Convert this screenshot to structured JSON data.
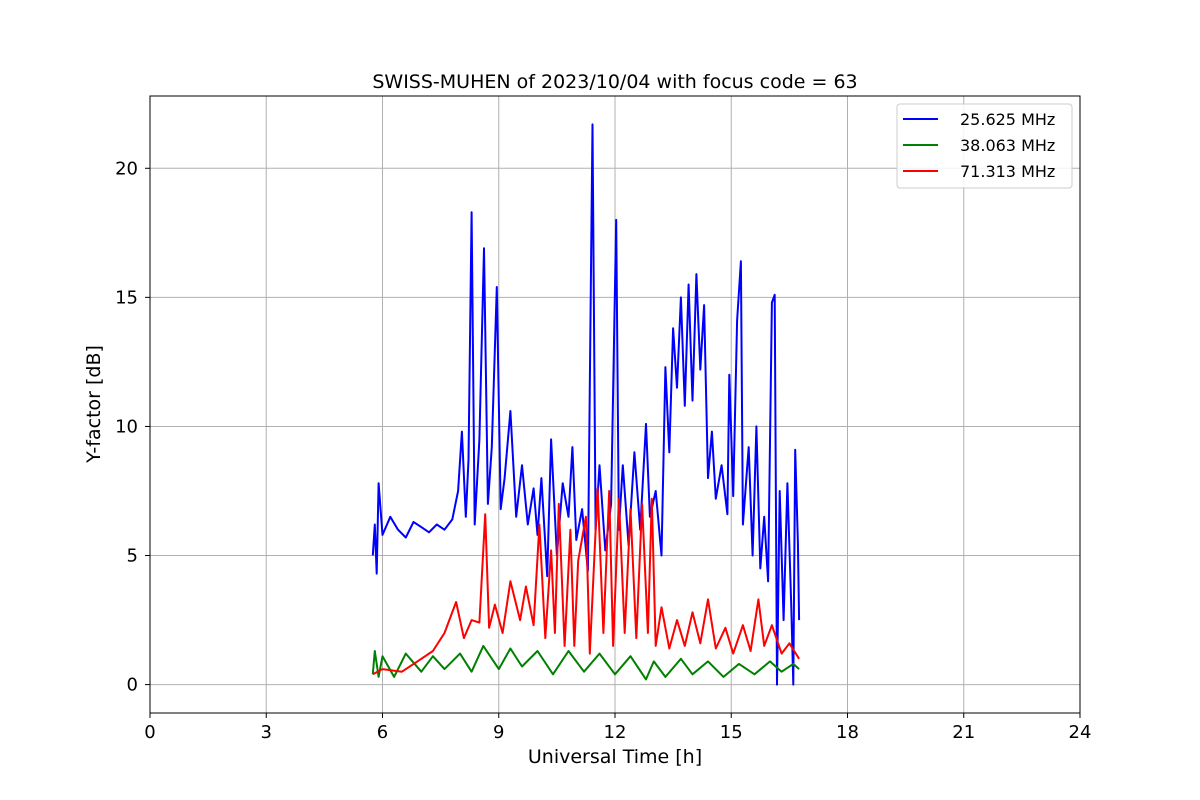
{
  "chart_data": {
    "type": "line",
    "title": "SWISS-MUHEN of 2023/10/04 with focus code = 63",
    "xlabel": "Universal Time [h]",
    "ylabel": "Y-factor [dB]",
    "xlim": [
      0,
      24
    ],
    "ylim": [
      -1.1,
      22.8
    ],
    "xticks": [
      0,
      3,
      6,
      9,
      12,
      15,
      18,
      21,
      24
    ],
    "xtick_labels": [
      "0",
      "3",
      "6",
      "9",
      "12",
      "15",
      "18",
      "21",
      "24"
    ],
    "yticks": [
      0,
      5,
      10,
      15,
      20
    ],
    "ytick_labels": [
      "0",
      "5",
      "10",
      "15",
      "20"
    ],
    "grid": true,
    "legend_position": "top-right",
    "series": [
      {
        "name": "25.625 MHz",
        "color": "#0000ff",
        "points": [
          [
            5.75,
            5.0
          ],
          [
            5.8,
            6.2
          ],
          [
            5.85,
            4.3
          ],
          [
            5.9,
            7.8
          ],
          [
            6.0,
            5.8
          ],
          [
            6.2,
            6.5
          ],
          [
            6.4,
            6.0
          ],
          [
            6.6,
            5.7
          ],
          [
            6.8,
            6.3
          ],
          [
            7.0,
            6.1
          ],
          [
            7.2,
            5.9
          ],
          [
            7.4,
            6.2
          ],
          [
            7.6,
            6.0
          ],
          [
            7.8,
            6.4
          ],
          [
            7.95,
            7.5
          ],
          [
            8.05,
            9.8
          ],
          [
            8.15,
            6.5
          ],
          [
            8.22,
            8.7
          ],
          [
            8.3,
            18.3
          ],
          [
            8.38,
            6.2
          ],
          [
            8.5,
            9.5
          ],
          [
            8.62,
            16.9
          ],
          [
            8.72,
            7.0
          ],
          [
            8.82,
            9.2
          ],
          [
            8.95,
            15.4
          ],
          [
            9.05,
            6.8
          ],
          [
            9.15,
            8.0
          ],
          [
            9.3,
            10.6
          ],
          [
            9.45,
            6.5
          ],
          [
            9.6,
            8.5
          ],
          [
            9.75,
            6.2
          ],
          [
            9.9,
            7.6
          ],
          [
            10.0,
            5.8
          ],
          [
            10.1,
            8.0
          ],
          [
            10.25,
            4.2
          ],
          [
            10.35,
            9.5
          ],
          [
            10.5,
            5.0
          ],
          [
            10.65,
            7.8
          ],
          [
            10.8,
            6.5
          ],
          [
            10.9,
            9.2
          ],
          [
            11.0,
            5.6
          ],
          [
            11.15,
            6.8
          ],
          [
            11.3,
            4.4
          ],
          [
            11.42,
            21.7
          ],
          [
            11.5,
            6.0
          ],
          [
            11.6,
            8.5
          ],
          [
            11.75,
            5.2
          ],
          [
            11.9,
            7.0
          ],
          [
            12.03,
            18.0
          ],
          [
            12.1,
            6.0
          ],
          [
            12.2,
            8.5
          ],
          [
            12.35,
            5.4
          ],
          [
            12.5,
            9.0
          ],
          [
            12.65,
            6.0
          ],
          [
            12.8,
            10.1
          ],
          [
            12.9,
            6.5
          ],
          [
            13.05,
            7.5
          ],
          [
            13.2,
            5.0
          ],
          [
            13.3,
            12.3
          ],
          [
            13.4,
            9.0
          ],
          [
            13.5,
            13.8
          ],
          [
            13.6,
            11.5
          ],
          [
            13.7,
            15.0
          ],
          [
            13.8,
            10.8
          ],
          [
            13.9,
            15.5
          ],
          [
            14.0,
            11.0
          ],
          [
            14.1,
            15.9
          ],
          [
            14.2,
            12.2
          ],
          [
            14.3,
            14.7
          ],
          [
            14.4,
            8.0
          ],
          [
            14.5,
            9.8
          ],
          [
            14.6,
            7.2
          ],
          [
            14.75,
            8.5
          ],
          [
            14.9,
            6.6
          ],
          [
            14.95,
            12.0
          ],
          [
            15.05,
            7.3
          ],
          [
            15.15,
            14.1
          ],
          [
            15.25,
            16.4
          ],
          [
            15.3,
            6.2
          ],
          [
            15.45,
            9.2
          ],
          [
            15.55,
            5.0
          ],
          [
            15.65,
            10.0
          ],
          [
            15.75,
            4.5
          ],
          [
            15.85,
            6.5
          ],
          [
            15.95,
            4.0
          ],
          [
            16.05,
            14.8
          ],
          [
            16.12,
            15.1
          ],
          [
            16.18,
            0.0
          ],
          [
            16.25,
            7.5
          ],
          [
            16.35,
            2.5
          ],
          [
            16.45,
            7.8
          ],
          [
            16.55,
            3.0
          ],
          [
            16.6,
            0.0
          ],
          [
            16.65,
            9.1
          ],
          [
            16.72,
            5.5
          ],
          [
            16.75,
            2.5
          ]
        ]
      },
      {
        "name": "38.063 MHz",
        "color": "#008000",
        "points": [
          [
            5.75,
            0.4
          ],
          [
            5.8,
            1.3
          ],
          [
            5.9,
            0.3
          ],
          [
            6.0,
            1.1
          ],
          [
            6.3,
            0.3
          ],
          [
            6.6,
            1.2
          ],
          [
            7.0,
            0.5
          ],
          [
            7.3,
            1.1
          ],
          [
            7.6,
            0.6
          ],
          [
            8.0,
            1.2
          ],
          [
            8.3,
            0.5
          ],
          [
            8.6,
            1.5
          ],
          [
            9.0,
            0.6
          ],
          [
            9.3,
            1.4
          ],
          [
            9.6,
            0.7
          ],
          [
            10.0,
            1.3
          ],
          [
            10.4,
            0.4
          ],
          [
            10.8,
            1.3
          ],
          [
            11.2,
            0.5
          ],
          [
            11.6,
            1.2
          ],
          [
            12.0,
            0.4
          ],
          [
            12.4,
            1.1
          ],
          [
            12.8,
            0.2
          ],
          [
            13.0,
            0.9
          ],
          [
            13.3,
            0.3
          ],
          [
            13.7,
            1.0
          ],
          [
            14.0,
            0.4
          ],
          [
            14.4,
            0.9
          ],
          [
            14.8,
            0.3
          ],
          [
            15.2,
            0.8
          ],
          [
            15.6,
            0.4
          ],
          [
            16.0,
            0.9
          ],
          [
            16.3,
            0.5
          ],
          [
            16.6,
            0.8
          ],
          [
            16.75,
            0.6
          ]
        ]
      },
      {
        "name": "71.313 MHz",
        "color": "#ff0000",
        "points": [
          [
            5.75,
            0.4
          ],
          [
            6.0,
            0.6
          ],
          [
            6.5,
            0.5
          ],
          [
            6.9,
            0.9
          ],
          [
            7.3,
            1.3
          ],
          [
            7.6,
            2.0
          ],
          [
            7.9,
            3.2
          ],
          [
            8.1,
            1.8
          ],
          [
            8.3,
            2.5
          ],
          [
            8.5,
            2.4
          ],
          [
            8.65,
            6.6
          ],
          [
            8.75,
            2.2
          ],
          [
            8.9,
            3.1
          ],
          [
            9.1,
            2.0
          ],
          [
            9.3,
            4.0
          ],
          [
            9.55,
            2.5
          ],
          [
            9.7,
            3.8
          ],
          [
            9.9,
            2.3
          ],
          [
            10.05,
            6.2
          ],
          [
            10.2,
            1.8
          ],
          [
            10.35,
            5.2
          ],
          [
            10.45,
            2.0
          ],
          [
            10.55,
            7.0
          ],
          [
            10.7,
            1.5
          ],
          [
            10.85,
            6.0
          ],
          [
            10.95,
            1.5
          ],
          [
            11.05,
            4.8
          ],
          [
            11.25,
            6.5
          ],
          [
            11.35,
            1.2
          ],
          [
            11.55,
            7.6
          ],
          [
            11.7,
            2.0
          ],
          [
            11.85,
            7.5
          ],
          [
            11.95,
            1.5
          ],
          [
            12.1,
            7.2
          ],
          [
            12.25,
            2.0
          ],
          [
            12.4,
            6.8
          ],
          [
            12.55,
            1.8
          ],
          [
            12.7,
            7.0
          ],
          [
            12.85,
            2.0
          ],
          [
            12.95,
            7.2
          ],
          [
            13.05,
            1.5
          ],
          [
            13.2,
            3.0
          ],
          [
            13.4,
            1.4
          ],
          [
            13.6,
            2.5
          ],
          [
            13.8,
            1.5
          ],
          [
            14.0,
            2.8
          ],
          [
            14.2,
            1.6
          ],
          [
            14.4,
            3.3
          ],
          [
            14.6,
            1.4
          ],
          [
            14.85,
            2.2
          ],
          [
            15.05,
            1.2
          ],
          [
            15.3,
            2.3
          ],
          [
            15.5,
            1.3
          ],
          [
            15.7,
            3.3
          ],
          [
            15.85,
            1.5
          ],
          [
            16.05,
            2.3
          ],
          [
            16.3,
            1.2
          ],
          [
            16.5,
            1.6
          ],
          [
            16.75,
            1.0
          ]
        ]
      }
    ]
  }
}
